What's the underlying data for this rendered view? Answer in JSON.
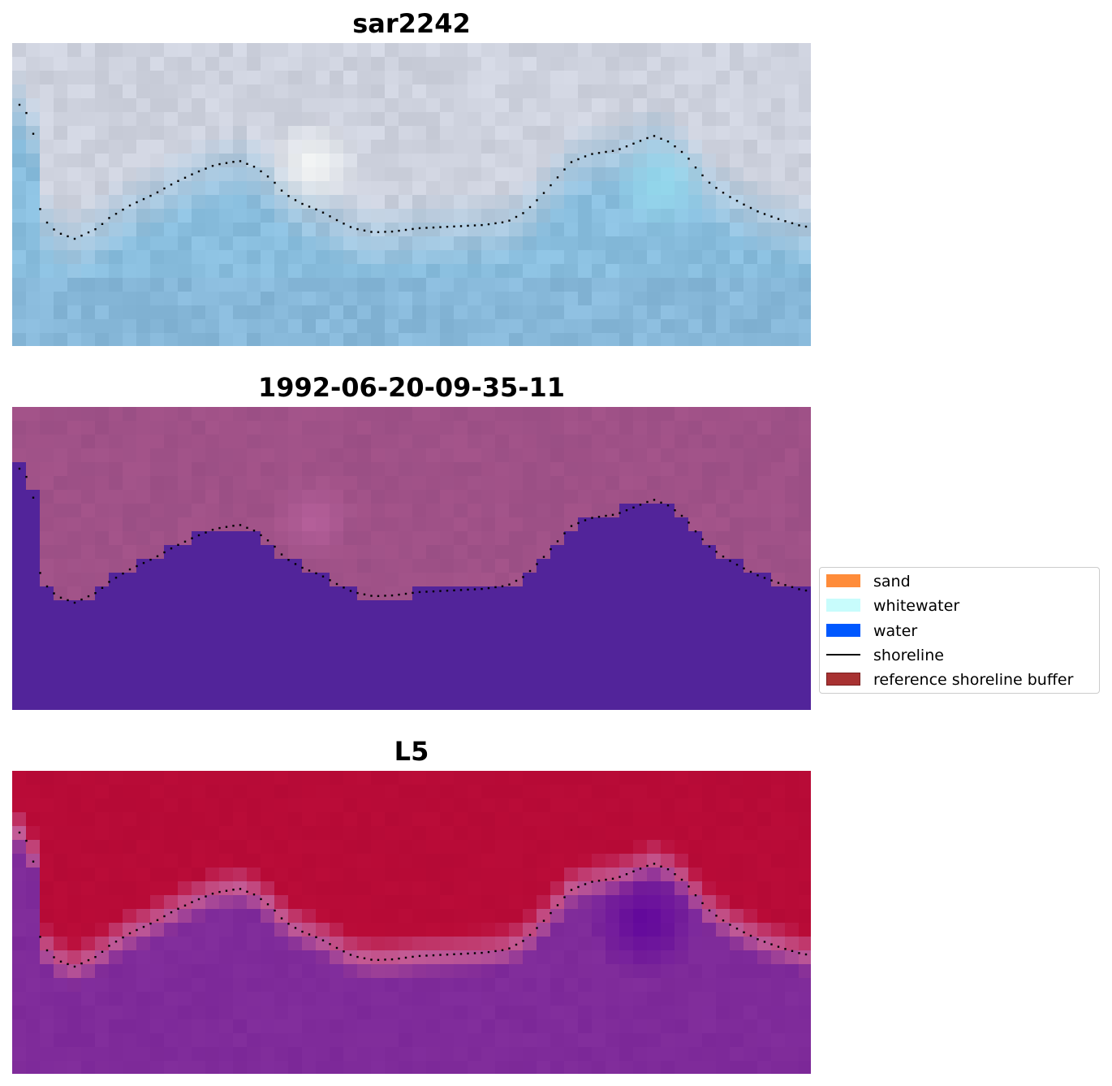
{
  "panels": [
    {
      "title": "sar2242"
    },
    {
      "title": "1992-06-20-09-35-11"
    },
    {
      "title": "L5"
    }
  ],
  "legend": {
    "items": [
      {
        "label": "sand",
        "color": "#ff8c3a",
        "kind": "patch"
      },
      {
        "label": "whitewater",
        "color": "#c8fcfc",
        "kind": "patch"
      },
      {
        "label": "water",
        "color": "#0058ff",
        "kind": "patch"
      },
      {
        "label": "shoreline",
        "color": "#000000",
        "kind": "line"
      },
      {
        "label": "reference shoreline buffer",
        "color": "#a83232",
        "edge": "#7a1e1e",
        "kind": "patch"
      }
    ]
  },
  "colors": {
    "rgb_sky": "#d8d6de",
    "rgb_water": "#8bbfdc",
    "class_land": "#a4548a",
    "class_water": "#52249a",
    "mndwi_land": "#b90c38",
    "mndwi_water": "#7a2a9a"
  }
}
